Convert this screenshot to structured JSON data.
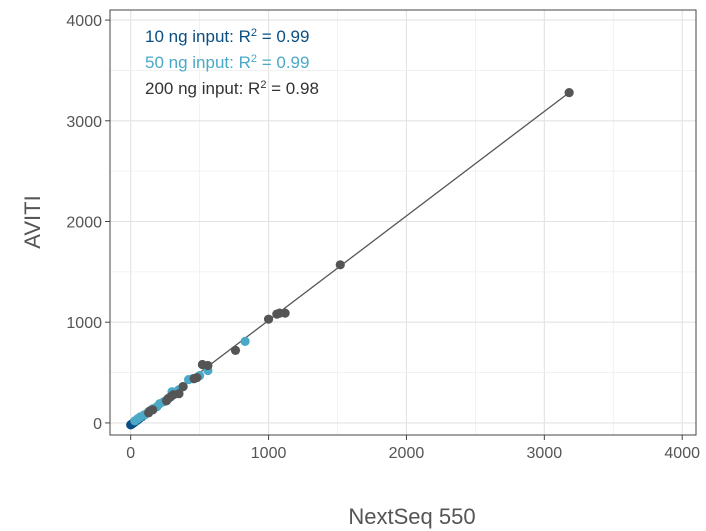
{
  "chart_data": {
    "type": "scatter",
    "xlabel": "NextSeq 550",
    "ylabel": "AVITI",
    "xlim": [
      -150,
      4100
    ],
    "ylim": [
      -120,
      4100
    ],
    "x_ticks": [
      0,
      1000,
      2000,
      3000,
      4000
    ],
    "y_ticks": [
      0,
      1000,
      2000,
      3000,
      4000
    ],
    "grid": true,
    "legend_position": "top-left",
    "annotations": [
      {
        "prefix": "10 ng input: R",
        "sup": "2",
        "suffix": " = 0.99",
        "color": "#0a4f82"
      },
      {
        "prefix": "50 ng input: R",
        "sup": "2",
        "suffix": " = 0.99",
        "color": "#4aa9c6"
      },
      {
        "prefix": "200 ng input: R",
        "sup": "2",
        "suffix": " = 0.98",
        "color": "#333333"
      }
    ],
    "fit_line": {
      "x": [
        0,
        3180
      ],
      "y": [
        -20,
        3280
      ],
      "color": "#555555"
    },
    "series": [
      {
        "color": "#0a4f82",
        "x": [
          0,
          5,
          10,
          15,
          20,
          25,
          30,
          40,
          50,
          60,
          80,
          100
        ],
        "y": [
          -20,
          -15,
          -10,
          -5,
          0,
          5,
          10,
          20,
          30,
          40,
          60,
          80
        ]
      },
      {
        "color": "#4aa9c6",
        "x": [
          30,
          50,
          70,
          100,
          130,
          160,
          190,
          210,
          240,
          280,
          300,
          320,
          350,
          380,
          420,
          450,
          500,
          560,
          830
        ],
        "y": [
          20,
          40,
          60,
          80,
          110,
          140,
          160,
          190,
          210,
          250,
          310,
          290,
          330,
          360,
          430,
          440,
          470,
          520,
          810
        ]
      },
      {
        "color": "#555555",
        "x": [
          130,
          140,
          160,
          260,
          270,
          290,
          310,
          350,
          380,
          460,
          480,
          520,
          560,
          760,
          1000,
          1060,
          1080,
          1120,
          1520,
          3180
        ],
        "y": [
          100,
          120,
          130,
          220,
          240,
          260,
          280,
          290,
          360,
          440,
          450,
          580,
          570,
          720,
          1030,
          1080,
          1090,
          1090,
          1570,
          3280
        ]
      }
    ]
  }
}
